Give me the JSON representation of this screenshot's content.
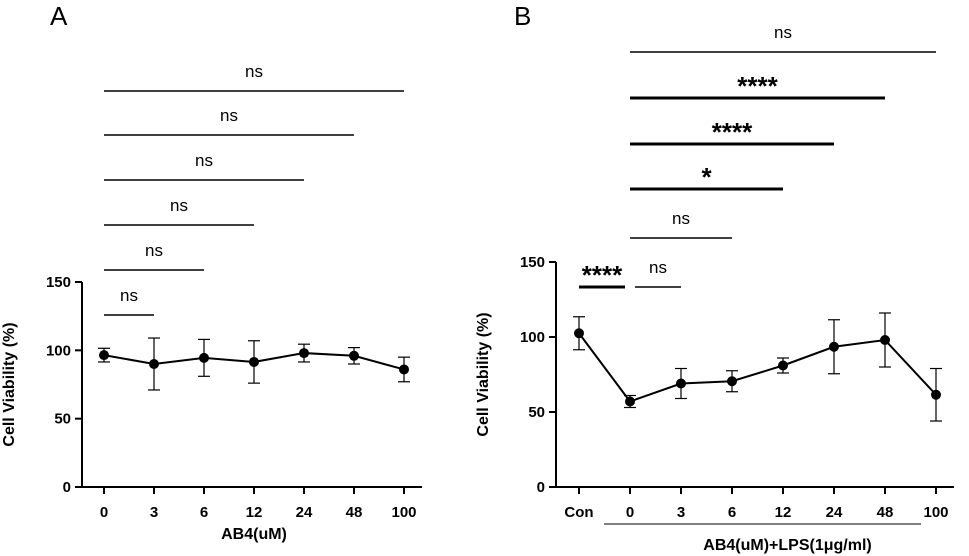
{
  "chart_data": [
    {
      "type": "line",
      "panel_label": "A",
      "categories": [
        "0",
        "3",
        "6",
        "12",
        "24",
        "48",
        "100"
      ],
      "series": [
        {
          "name": "AB4",
          "values": [
            96.5,
            90,
            94.5,
            91.5,
            98,
            96,
            86
          ],
          "error": [
            5,
            19,
            13.5,
            15.5,
            6.5,
            6,
            9
          ]
        }
      ],
      "xlabel": "AB4(uM)",
      "ylabel": "Cell Viability (%)",
      "ylim": [
        0,
        150
      ],
      "yticks": [
        "0",
        "50",
        "100",
        "150"
      ],
      "grid": false,
      "significance": [
        {
          "from": 0,
          "to": 1,
          "label": "ns"
        },
        {
          "from": 0,
          "to": 2,
          "label": "ns"
        },
        {
          "from": 0,
          "to": 3,
          "label": "ns"
        },
        {
          "from": 0,
          "to": 4,
          "label": "ns"
        },
        {
          "from": 0,
          "to": 5,
          "label": "ns"
        },
        {
          "from": 0,
          "to": 6,
          "label": "ns"
        }
      ]
    },
    {
      "type": "line",
      "panel_label": "B",
      "categories": [
        "Con",
        "0",
        "3",
        "6",
        "12",
        "24",
        "48",
        "100"
      ],
      "series": [
        {
          "name": "AB4+LPS",
          "values": [
            102.5,
            57,
            69,
            70.5,
            81,
            93.5,
            98,
            61.5
          ],
          "error": [
            11,
            4,
            10,
            7,
            5,
            18,
            18,
            17.5
          ]
        }
      ],
      "xlabel": "AB4(uM)+LPS(1μg/ml)",
      "ylabel": "Cell Viability (%)",
      "ylim": [
        0,
        150
      ],
      "yticks": [
        "0",
        "50",
        "100",
        "150"
      ],
      "grid": false,
      "significance": [
        {
          "from": 0,
          "to": 1,
          "label": "****"
        },
        {
          "from": 1,
          "to": 2,
          "label": "ns"
        },
        {
          "from": 1,
          "to": 3,
          "label": "ns"
        },
        {
          "from": 1,
          "to": 4,
          "label": "*"
        },
        {
          "from": 1,
          "to": 5,
          "label": "****"
        },
        {
          "from": 1,
          "to": 6,
          "label": "****"
        },
        {
          "from": 1,
          "to": 7,
          "label": "ns"
        }
      ]
    }
  ]
}
